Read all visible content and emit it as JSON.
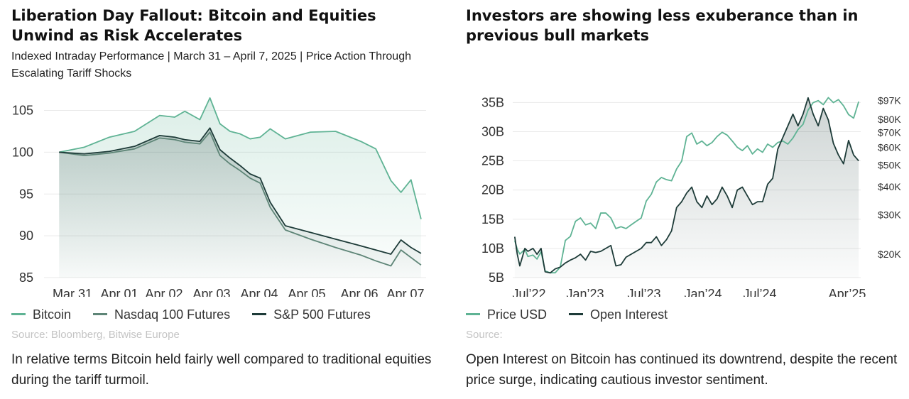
{
  "left": {
    "title": "Liberation Day Fallout: Bitcoin and Equities Unwind as Risk Accelerates",
    "subtitle": "Indexed Intraday Performance | March 31 – April 7, 2025 | Price Action Through Escalating Tariff Shocks",
    "legend": [
      {
        "label": "Bitcoin",
        "color": "#5fb394"
      },
      {
        "label": "Nasdaq 100 Futures",
        "color": "#5e8577"
      },
      {
        "label": "S&P 500 Futures",
        "color": "#1d3b38"
      }
    ],
    "source": "Source: Bloomberg, Bitwise Europe",
    "note": "In relative terms Bitcoin held fairly well compared to traditional equities during the tariff turmoil."
  },
  "right": {
    "title": "Investors are showing less exuberance than in previous bull markets",
    "legend": [
      {
        "label": "Price USD",
        "color": "#5fb394"
      },
      {
        "label": "Open Interest",
        "color": "#1d3b38"
      }
    ],
    "source": "Source:",
    "note": "Open Interest on Bitcoin has continued its downtrend, despite the recent price surge, indicating cautious investor sentiment."
  },
  "chart_data": [
    {
      "type": "line",
      "x_labels": [
        "Mar 31",
        "Apr 01",
        "Apr 02",
        "Apr 03",
        "Apr 04",
        "Apr 05",
        "Apr 06",
        "Apr 07"
      ],
      "x": [
        0,
        0.5,
        1,
        1.5,
        2,
        2.3,
        2.5,
        2.8,
        3,
        3.2,
        3.4,
        3.6,
        3.8,
        4,
        4.2,
        4.5,
        5,
        5.5,
        6,
        6.3,
        6.6,
        6.8,
        7,
        7.2
      ],
      "y_ticks": [
        85,
        90,
        95,
        100,
        105
      ],
      "ylim": [
        85,
        107
      ],
      "xlim": [
        -0.3,
        7.3
      ],
      "series": [
        {
          "name": "Bitcoin",
          "color": "#5fb394",
          "values": [
            100,
            100.6,
            101.8,
            102.5,
            104.4,
            104.2,
            104.9,
            103.9,
            106.5,
            103.4,
            102.5,
            102.2,
            101.6,
            101.8,
            102.8,
            101.6,
            102.4,
            102.5,
            101.3,
            100.4,
            96.6,
            95.2,
            96.7,
            92.0
          ]
        },
        {
          "name": "Nasdaq 100 Futures",
          "color": "#5e8577",
          "values": [
            100,
            99.6,
            99.9,
            100.4,
            101.7,
            101.5,
            101.2,
            101.0,
            102.4,
            99.6,
            98.6,
            97.8,
            96.9,
            96.3,
            93.4,
            90.7,
            89.6,
            88.6,
            87.7,
            87.0,
            86.4,
            88.3,
            87.4,
            86.5
          ]
        },
        {
          "name": "S&P 500 Futures",
          "color": "#1d3b38",
          "values": [
            100,
            99.8,
            100.1,
            100.7,
            102.0,
            101.8,
            101.5,
            101.3,
            102.9,
            100.3,
            99.3,
            98.4,
            97.4,
            96.9,
            94.0,
            91.2,
            90.4,
            89.6,
            88.8,
            88.3,
            87.8,
            89.5,
            88.6,
            87.9
          ]
        }
      ]
    },
    {
      "type": "line",
      "x_labels": [
        "Jul’22",
        "Jan’23",
        "Jul’23",
        "Jan’24",
        "Jul’24",
        "Apr’25"
      ],
      "x": [
        0,
        0.25,
        0.5,
        1,
        1.3,
        1.8,
        2.2,
        2.6,
        3,
        3.5,
        4,
        4.5,
        5,
        5.5,
        6,
        6.5,
        7,
        7.5,
        8,
        8.5,
        9,
        9.5,
        10,
        10.5,
        11,
        11.5,
        12,
        12.5,
        13,
        13.5,
        14,
        14.5,
        15,
        15.5,
        16,
        16.5,
        17,
        17.5,
        18,
        18.5,
        19,
        19.5,
        20,
        20.5,
        21,
        21.5,
        22,
        22.5,
        23,
        23.5,
        24,
        24.5,
        25,
        25.5,
        26,
        26.5,
        27,
        27.5,
        28,
        28.5,
        29,
        29.5,
        30,
        30.5,
        31,
        31.5,
        32,
        32.5,
        33,
        33.5,
        34
      ],
      "y_ticks": [
        5,
        10,
        15,
        20,
        25,
        30,
        35
      ],
      "y_tick_labels": [
        "5B",
        "10B",
        "15B",
        "20B",
        "25B",
        "30B",
        "35B"
      ],
      "ylim": [
        5,
        36.5
      ],
      "xlim": [
        -0.2,
        34.2
      ],
      "y2_ticks_usd_k": [
        20,
        30,
        40,
        50,
        60,
        70,
        80,
        97
      ],
      "y2_tick_labels": [
        "$20K",
        "$30K",
        "$40K",
        "$50K",
        "$60K",
        "$70K",
        "$80K",
        "$97K"
      ],
      "y2_scale": "log",
      "y2lim_usd_k": [
        15.7,
        104.1
      ],
      "series": [
        {
          "name": "Price USD",
          "color": "#5fb394",
          "axis": "right",
          "unit": "USD thousands",
          "values": [
            23,
            21,
            20,
            21,
            19.5,
            19.8,
            19,
            20.5,
            16.8,
            16.5,
            16.5,
            17.5,
            23,
            24,
            28,
            29,
            27,
            27.5,
            26,
            30.5,
            30.5,
            29,
            26,
            26.5,
            26,
            27,
            28,
            29,
            34.5,
            37,
            42,
            44,
            43,
            42.5,
            48,
            52,
            67,
            69.5,
            62,
            64,
            61,
            63,
            67,
            70,
            68,
            64,
            60,
            58,
            61,
            56,
            59,
            57,
            62,
            60,
            63,
            64,
            62,
            66,
            72,
            76,
            88,
            95,
            97,
            93,
            100,
            95,
            98,
            92,
            84,
            81,
            96
          ]
        },
        {
          "name": "Open Interest",
          "color": "#1d3b38",
          "axis": "left",
          "unit": "USD billions",
          "values": [
            12,
            9,
            7,
            10,
            9.5,
            10,
            9,
            10,
            6,
            5.8,
            6.5,
            6.8,
            7.5,
            8,
            8.4,
            9,
            8,
            9.5,
            9.3,
            9.5,
            10,
            10.5,
            7,
            7.2,
            8.5,
            9,
            9.5,
            10,
            11,
            11,
            12,
            10.5,
            11.5,
            13,
            17,
            18,
            19.5,
            20.5,
            18,
            17,
            19,
            17.5,
            18.5,
            20.5,
            19,
            17,
            20,
            20.5,
            19,
            17.5,
            18,
            18,
            21,
            22,
            27,
            29,
            31,
            33,
            31,
            33,
            35.8,
            33,
            31,
            34,
            32,
            28,
            26,
            24.5,
            28.5,
            26,
            25
          ]
        }
      ]
    }
  ]
}
